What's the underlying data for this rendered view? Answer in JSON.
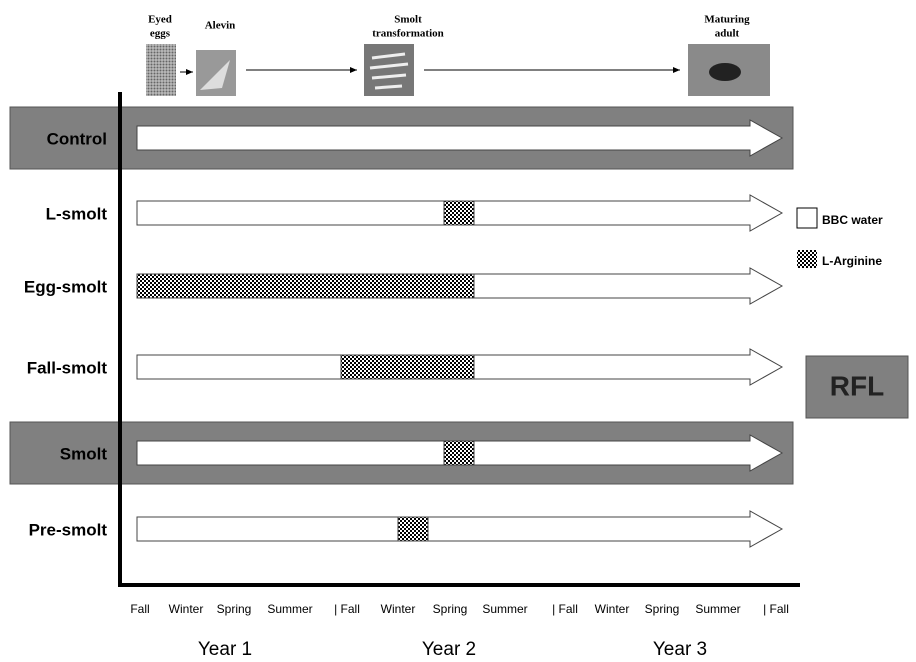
{
  "life_stages": [
    [
      "Eyed",
      "eggs"
    ],
    [
      "Alevin"
    ],
    [
      "Smolt",
      "transformation"
    ],
    [
      "Maturing",
      "adult"
    ]
  ],
  "rows": [
    "Control",
    "L-smolt",
    "Egg-smolt",
    "Fall-smolt",
    "Smolt",
    "Pre-smolt"
  ],
  "legend": [
    "BBC water",
    "L-Arginine"
  ],
  "box_label": "RFL",
  "seasons": [
    "Fall",
    "Winter",
    "Spring",
    "Summer",
    "| Fall",
    "Winter",
    "Spring",
    "Summer",
    "| Fall",
    "Winter",
    "Spring",
    "Summer",
    "| Fall"
  ],
  "years": [
    "Year 1",
    "Year 2",
    "Year 3"
  ]
}
